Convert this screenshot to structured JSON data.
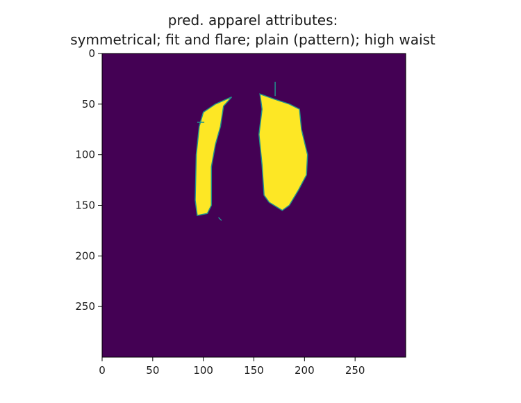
{
  "chart_data": {
    "type": "heatmap",
    "title": "pred. apparel attributes:",
    "subtitle": "symmetrical; fit and flare; plain (pattern); high waist",
    "xlabel": "",
    "ylabel": "",
    "xlim": [
      0,
      300
    ],
    "ylim": [
      300,
      0
    ],
    "xticks": [
      0,
      50,
      100,
      150,
      200,
      250
    ],
    "yticks": [
      0,
      50,
      100,
      150,
      200,
      250
    ],
    "grid": false,
    "colormap": {
      "background": "#440154",
      "foreground": "#fde725",
      "edge": "#21918c"
    },
    "regions": [
      {
        "value": 1,
        "polygon": [
          [
            128,
            43
          ],
          [
            120,
            52
          ],
          [
            117,
            72
          ],
          [
            112,
            90
          ],
          [
            108,
            112
          ],
          [
            108,
            150
          ],
          [
            104,
            158
          ],
          [
            94,
            160
          ],
          [
            92,
            145
          ],
          [
            93,
            100
          ],
          [
            96,
            72
          ],
          [
            100,
            58
          ],
          [
            112,
            50
          ]
        ]
      },
      {
        "value": 1,
        "polygon": [
          [
            156,
            40
          ],
          [
            170,
            45
          ],
          [
            185,
            50
          ],
          [
            195,
            55
          ],
          [
            197,
            75
          ],
          [
            203,
            100
          ],
          [
            202,
            120
          ],
          [
            194,
            135
          ],
          [
            185,
            150
          ],
          [
            178,
            155
          ],
          [
            165,
            147
          ],
          [
            160,
            140
          ],
          [
            158,
            110
          ],
          [
            155,
            80
          ],
          [
            158,
            55
          ]
        ]
      }
    ],
    "lines": [
      {
        "x": [
          94,
          101
        ],
        "y": [
          68,
          68
        ]
      },
      {
        "x": [
          171,
          171
        ],
        "y": [
          28,
          42
        ]
      },
      {
        "x": [
          115,
          118
        ],
        "y": [
          162,
          165
        ]
      }
    ]
  }
}
